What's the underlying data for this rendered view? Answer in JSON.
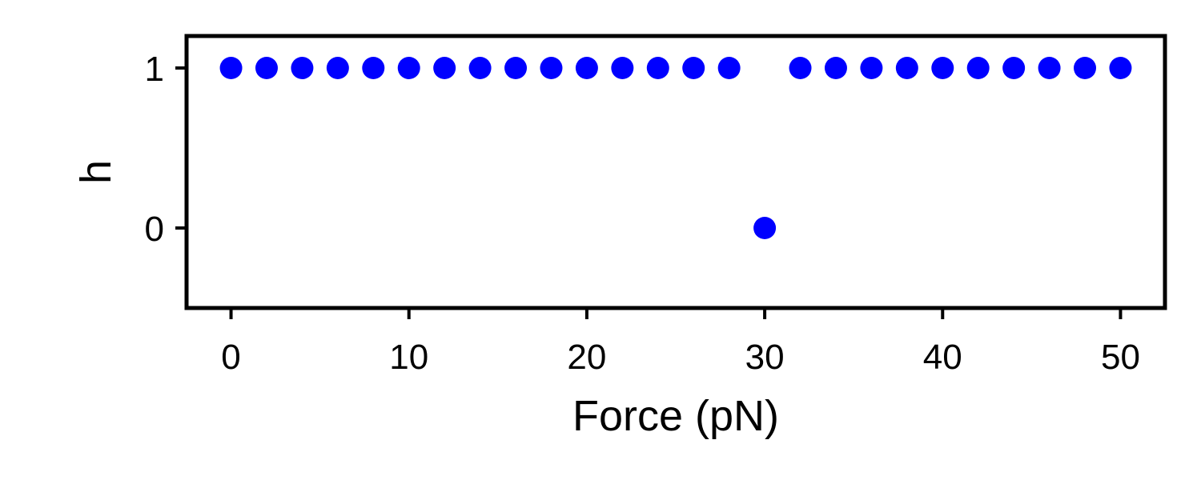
{
  "chart_data": {
    "type": "scatter",
    "xlabel": "Force (pN)",
    "ylabel": "h",
    "xlim": [
      -2.5,
      52.5
    ],
    "ylim": [
      -0.5,
      1.2
    ],
    "xticks": [
      0,
      10,
      20,
      30,
      40,
      50
    ],
    "yticks": [
      0,
      1
    ],
    "grid": false,
    "marker_color": "#0000ff",
    "series": [
      {
        "x": [
          0,
          2,
          4,
          6,
          8,
          10,
          12,
          14,
          16,
          18,
          20,
          22,
          24,
          26,
          28,
          30,
          32,
          34,
          36,
          38,
          40,
          42,
          44,
          46,
          48,
          50
        ],
        "y": [
          1,
          1,
          1,
          1,
          1,
          1,
          1,
          1,
          1,
          1,
          1,
          1,
          1,
          1,
          1,
          0,
          1,
          1,
          1,
          1,
          1,
          1,
          1,
          1,
          1,
          1
        ]
      }
    ]
  }
}
